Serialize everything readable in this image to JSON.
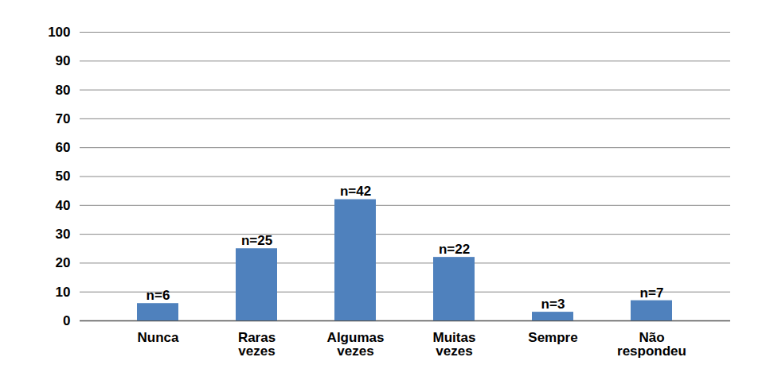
{
  "chart_data": {
    "type": "bar",
    "categories": [
      "Nunca",
      "Raras vezes",
      "Algumas vezes",
      "Muitas vezes",
      "Sempre",
      "Não respondeu"
    ],
    "values": [
      6,
      25,
      42,
      22,
      3,
      7
    ],
    "value_labels": [
      "n=6",
      "n=25",
      "n=42",
      "n=22",
      "n=3",
      "n=7"
    ],
    "color": "#4f81bd",
    "ylim": [
      0,
      100
    ],
    "yticks": [
      0,
      10,
      20,
      30,
      40,
      50,
      60,
      70,
      80,
      90,
      100
    ],
    "grid": true,
    "data_labels": true
  }
}
